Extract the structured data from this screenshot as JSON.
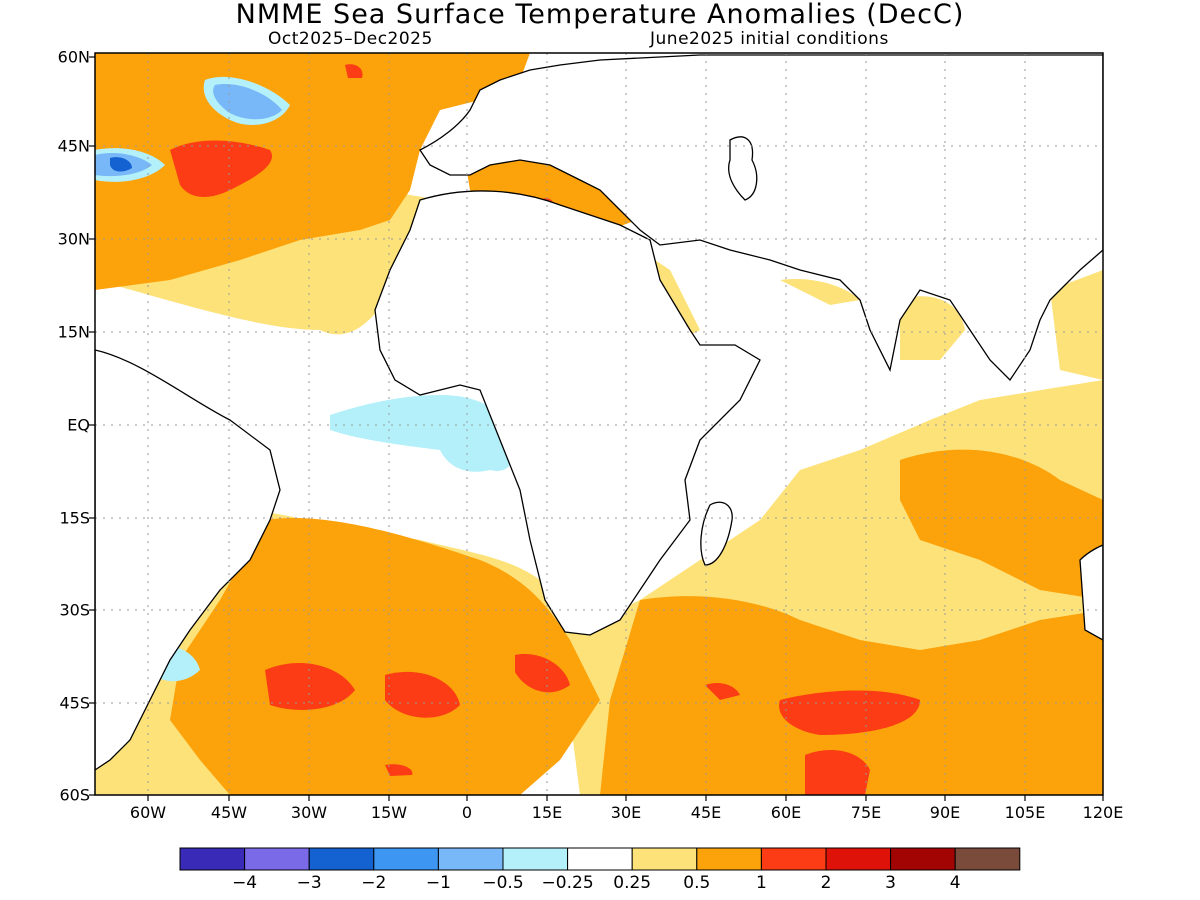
{
  "title": "NMME Sea Surface Temperature Anomalies (DecC)",
  "subtitle_left": "Oct2025–Dec2025",
  "subtitle_right": "June2025 initial conditions",
  "lat_labels": [
    "60N",
    "45N",
    "30N",
    "15N",
    "EQ",
    "15S",
    "30S",
    "45S",
    "60S"
  ],
  "lon_labels": [
    "60W",
    "45W",
    "30W",
    "15W",
    "0",
    "15E",
    "30E",
    "45E",
    "60E",
    "75E",
    "90E",
    "105E",
    "120E"
  ],
  "colorbar": {
    "colors": [
      "#3a2ab8",
      "#7b6ae8",
      "#1462d2",
      "#3c96f2",
      "#78b8f8",
      "#b4f0fa",
      "#ffffff",
      "#fde27a",
      "#fca20a",
      "#fb3c14",
      "#de1208",
      "#a20404",
      "#7a4a3a"
    ],
    "labels": [
      "−4",
      "−3",
      "−2",
      "−1",
      "−0.5",
      "−0.25",
      "0.25",
      "0.5",
      "1",
      "2",
      "3",
      "4"
    ]
  },
  "legend_colors": {
    "neutral": "#ffffff",
    "weak_warm": "#fde27a",
    "warm": "#fca20a",
    "strong_warm": "#fb3c14",
    "weak_cool": "#b4f0fa",
    "cool": "#78b8f8",
    "strong_cool": "#1462d2"
  }
}
